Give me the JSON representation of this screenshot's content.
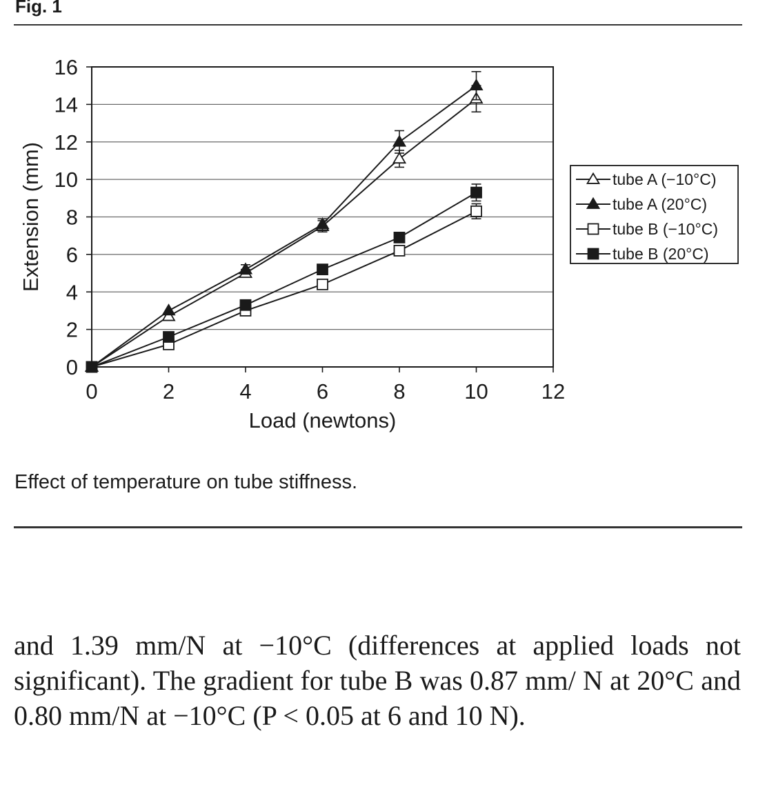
{
  "figure": {
    "label": "Fig. 1",
    "caption": "Effect of temperature on tube stiffness."
  },
  "chart_data": {
    "type": "line",
    "title": "",
    "xlabel": "Load (newtons)",
    "ylabel": "Extension (mm)",
    "xlim": [
      0,
      12
    ],
    "ylim": [
      0,
      16
    ],
    "xticks": [
      0,
      2,
      4,
      6,
      8,
      10,
      12
    ],
    "yticks": [
      0,
      2,
      4,
      6,
      8,
      10,
      12,
      14,
      16
    ],
    "grid": "horizontal",
    "legend_position": "right",
    "x": [
      0,
      2,
      4,
      6,
      8,
      10
    ],
    "series": [
      {
        "name": "tube A (−10°C)",
        "marker": "triangle-open",
        "values": [
          0,
          2.7,
          5.0,
          7.5,
          11.1,
          14.3
        ],
        "errors": [
          0,
          0,
          0.2,
          0.3,
          0.45,
          0.7
        ]
      },
      {
        "name": "tube A (20°C)",
        "marker": "triangle-filled",
        "values": [
          0,
          3.0,
          5.2,
          7.6,
          12.0,
          15.0
        ],
        "errors": [
          0,
          0,
          0.25,
          0.3,
          0.6,
          0.75
        ]
      },
      {
        "name": "tube B (−10°C)",
        "marker": "square-open",
        "values": [
          0,
          1.2,
          3.0,
          4.4,
          6.2,
          8.3
        ],
        "errors": [
          0,
          0,
          0.15,
          0.2,
          0.2,
          0.4
        ]
      },
      {
        "name": "tube B (20°C)",
        "marker": "square-filled",
        "values": [
          0,
          1.6,
          3.3,
          5.2,
          6.9,
          9.3
        ],
        "errors": [
          0,
          0,
          0.15,
          0.2,
          0.2,
          0.45
        ]
      }
    ]
  },
  "body_text": "and 1.39 mm/N at −10°C (differences at applied loads not significant). The gradient for tube B was 0.87 mm/ N at 20°C and 0.80 mm/N at −10°C (P < 0.05 at 6 and 10 N)."
}
